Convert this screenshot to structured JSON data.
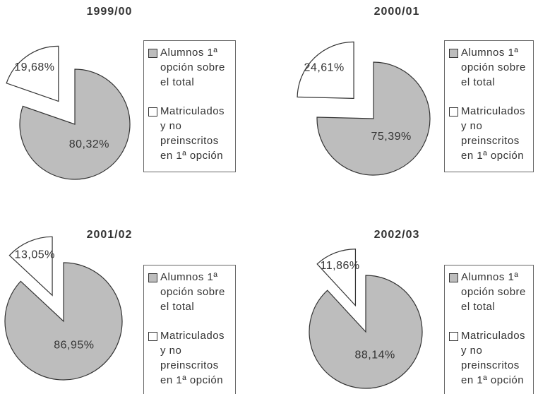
{
  "chart_data": [
    {
      "type": "pie",
      "title": "1999/00",
      "categories": [
        "Alumnos 1ª opción sobre el total",
        "Matriculados y no preinscritos en 1ª opción"
      ],
      "values": [
        80.32,
        19.68
      ],
      "value_labels": [
        "80,32%",
        "19,68%"
      ],
      "colors": [
        "#bdbdbd",
        "#ffffff"
      ],
      "legend": "right"
    },
    {
      "type": "pie",
      "title": "2000/01",
      "categories": [
        "Alumnos 1ª opción sobre el total",
        "Matriculados y no preinscritos en 1ª opción"
      ],
      "values": [
        75.39,
        24.61
      ],
      "value_labels": [
        "75,39%",
        "24,61%"
      ],
      "colors": [
        "#bdbdbd",
        "#ffffff"
      ],
      "legend": "right"
    },
    {
      "type": "pie",
      "title": "2001/02",
      "categories": [
        "Alumnos 1ª opción sobre el total",
        "Matriculados y no preinscritos en 1ª opción"
      ],
      "values": [
        86.95,
        13.05
      ],
      "value_labels": [
        "86,95%",
        "13,05%"
      ],
      "colors": [
        "#bdbdbd",
        "#ffffff"
      ],
      "legend": "right"
    },
    {
      "type": "pie",
      "title": "2002/03",
      "categories": [
        "Alumnos 1ª opción sobre el total",
        "Matriculados y no preinscritos en 1ª opción"
      ],
      "values": [
        88.14,
        11.86
      ],
      "value_labels": [
        "88,14%",
        "11,86%"
      ],
      "colors": [
        "#bdbdbd",
        "#ffffff"
      ],
      "legend": "right"
    }
  ]
}
